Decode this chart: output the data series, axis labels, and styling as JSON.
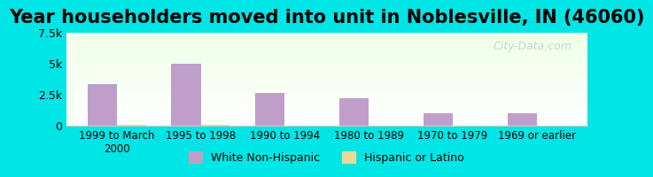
{
  "title": "Year householders moved into unit in Noblesville, IN (46060)",
  "categories": [
    "1999 to March\n2000",
    "1995 to 1998",
    "1990 to 1994",
    "1980 to 1989",
    "1970 to 1979",
    "1969 or earlier"
  ],
  "white_values": [
    3300,
    5000,
    2600,
    2200,
    1000,
    950
  ],
  "hispanic_values": [
    60,
    50,
    0,
    0,
    0,
    0
  ],
  "white_color": "#bf9fc9",
  "hispanic_color": "#e8d89a",
  "ylim": [
    0,
    7500
  ],
  "yticks": [
    0,
    2500,
    5000,
    7500
  ],
  "ytick_labels": [
    "0",
    "2.5k",
    "5k",
    "7.5k"
  ],
  "bg_outer": "#00e5e5",
  "bg_plot_top": "#e8f5e0",
  "bg_plot_bottom": "#f8fff0",
  "watermark": "City-Data.com",
  "bar_width": 0.35,
  "title_fontsize": 15,
  "legend_white": "White Non-Hispanic",
  "legend_hispanic": "Hispanic or Latino"
}
